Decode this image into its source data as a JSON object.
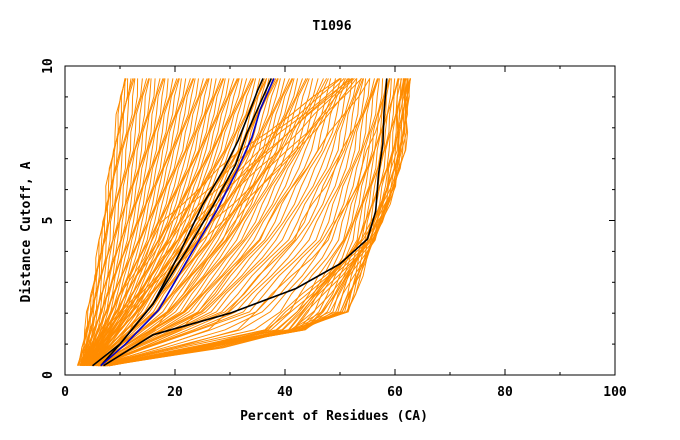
{
  "chart_data": {
    "type": "line",
    "title": "T1096",
    "xlabel": "Percent of Residues (CA)",
    "ylabel": "Distance Cutoff, A",
    "xlim": [
      0,
      100
    ],
    "ylim": [
      0,
      10
    ],
    "x_ticks": [
      "0",
      "20",
      "40",
      "60",
      "80",
      "100"
    ],
    "y_ticks": [
      "0",
      "5",
      "10"
    ],
    "grid": false,
    "colors": {
      "bundle": "#ff8c00",
      "highlight_black": "#000000",
      "highlight_blue": "#0000cc"
    },
    "bundle_note": "Several hundred orange curves fill the region between the left edge (x≈2 at y=0.3 to x≈11 at y=9.6) and the right edge (x≈8 at y=0.3 to x≈63 at y=9.6); representative curves given below.",
    "bundle_series": [
      {
        "x": [
          2.5,
          4.2,
          6.5,
          8.6,
          10.6
        ],
        "y": [
          0.3,
          2,
          4.5,
          7.2,
          9.6
        ]
      },
      {
        "x": [
          3.0,
          5.0,
          7.5,
          9.8,
          12.0
        ],
        "y": [
          0.3,
          2,
          4.5,
          7.2,
          9.6
        ]
      },
      {
        "x": [
          3.3,
          6.0,
          9.5,
          12.5,
          15.0
        ],
        "y": [
          0.3,
          2,
          4.5,
          7.2,
          9.6
        ]
      },
      {
        "x": [
          3.5,
          7.0,
          11.0,
          15.0,
          18.0
        ],
        "y": [
          0.3,
          2,
          4.5,
          7.2,
          9.6
        ]
      },
      {
        "x": [
          3.7,
          8.0,
          13.0,
          17.5,
          21.0
        ],
        "y": [
          0.3,
          2,
          4.5,
          7.2,
          9.6
        ]
      },
      {
        "x": [
          3.8,
          9.0,
          15.0,
          20.0,
          24.0
        ],
        "y": [
          0.3,
          2,
          4.5,
          7.2,
          9.6
        ]
      },
      {
        "x": [
          4.0,
          10.0,
          17.0,
          23.0,
          27.0
        ],
        "y": [
          0.3,
          2,
          4.5,
          7.2,
          9.6
        ]
      },
      {
        "x": [
          4.2,
          11.0,
          19.0,
          25.5,
          30.0
        ],
        "y": [
          0.3,
          2,
          4.5,
          7.2,
          9.6
        ]
      },
      {
        "x": [
          4.4,
          12.0,
          21.0,
          28.0,
          33.0
        ],
        "y": [
          0.3,
          2,
          4.5,
          7.2,
          9.6
        ]
      },
      {
        "x": [
          4.6,
          13.0,
          23.0,
          31.0,
          36.0
        ],
        "y": [
          0.3,
          2,
          4.5,
          7.2,
          9.6
        ]
      },
      {
        "x": [
          4.8,
          15.0,
          25.0,
          33.0,
          38.0
        ],
        "y": [
          0.3,
          2,
          4.5,
          7.2,
          9.6
        ]
      },
      {
        "x": [
          5.0,
          17.0,
          28.0,
          36.0,
          41.0
        ],
        "y": [
          0.3,
          2,
          4.5,
          7.2,
          9.6
        ]
      },
      {
        "x": [
          5.0,
          20.0,
          31.0,
          39.0,
          44.0
        ],
        "y": [
          0.3,
          2,
          4.5,
          7.2,
          9.6
        ]
      },
      {
        "x": [
          5.5,
          23.0,
          35.0,
          43.0,
          48.0
        ],
        "y": [
          0.3,
          2,
          4.5,
          7.2,
          9.6
        ]
      },
      {
        "x": [
          5.5,
          27.0,
          40.0,
          48.0,
          52.0
        ],
        "y": [
          0.3,
          2,
          4.5,
          7.2,
          9.6
        ]
      },
      {
        "x": [
          6.0,
          33.0,
          46.0,
          52.0,
          55.0
        ],
        "y": [
          0.3,
          2,
          4.5,
          7.2,
          9.6
        ]
      },
      {
        "x": [
          6.0,
          40.0,
          50.0,
          55.0,
          58.0
        ],
        "y": [
          0.3,
          1.5,
          4.2,
          7.0,
          9.6
        ]
      },
      {
        "x": [
          6.5,
          45.0,
          53.0,
          57.0,
          60.0
        ],
        "y": [
          0.3,
          1.5,
          4.2,
          7.0,
          9.6
        ]
      },
      {
        "x": [
          7.0,
          50.0,
          55.0,
          59.0,
          61.5
        ],
        "y": [
          0.3,
          1.7,
          4.5,
          7.0,
          9.6
        ]
      },
      {
        "x": [
          8.0,
          51.0,
          57.0,
          60.5,
          62.5
        ],
        "y": [
          0.3,
          1.8,
          4.7,
          7.0,
          9.6
        ]
      },
      {
        "x": [
          7.5,
          40.0,
          56.0,
          60.0,
          62.0,
          62.5
        ],
        "y": [
          0.3,
          1.2,
          4.4,
          6.0,
          7.5,
          9.6
        ]
      },
      {
        "x": [
          6.8,
          35.0,
          54.0,
          58.5,
          60.0,
          61.0
        ],
        "y": [
          0.3,
          1.3,
          4.3,
          6.0,
          7.5,
          9.6
        ]
      },
      {
        "x": [
          3.0,
          10.0,
          18.0,
          30.0,
          40.0,
          50.0
        ],
        "y": [
          0.3,
          2.5,
          5.0,
          7.0,
          8.3,
          9.6
        ]
      },
      {
        "x": [
          3.2,
          12.0,
          24.0,
          38.0,
          46.0,
          53.0
        ],
        "y": [
          0.3,
          2.0,
          4.2,
          6.5,
          8.0,
          9.6
        ]
      }
    ],
    "series": [
      {
        "color": "#000000",
        "x": [
          6.5,
          10.0,
          16.0,
          22.0,
          27.0,
          31.0,
          33.0,
          35.0,
          36.5,
          37.5
        ],
        "y": [
          0.3,
          1.0,
          2.3,
          4.0,
          5.5,
          6.8,
          7.8,
          8.6,
          9.2,
          9.6
        ]
      },
      {
        "color": "#0000cc",
        "x": [
          6.5,
          11.0,
          17.0,
          22.5,
          27.5,
          31.5,
          34.0,
          35.5,
          37.0,
          38.0
        ],
        "y": [
          0.3,
          1.0,
          2.1,
          3.8,
          5.3,
          6.7,
          7.7,
          8.6,
          9.2,
          9.6
        ]
      },
      {
        "color": "#000000",
        "x": [
          5.0,
          10.0,
          16.0,
          21.0,
          25.0,
          29.0,
          31.5,
          33.5,
          35.0,
          36.0
        ],
        "y": [
          0.3,
          1.0,
          2.3,
          4.0,
          5.5,
          6.7,
          7.6,
          8.5,
          9.2,
          9.6
        ]
      },
      {
        "color": "#000000",
        "x": [
          7.0,
          16.0,
          30.0,
          42.0,
          50.0,
          55.0,
          56.5,
          57.0,
          57.8,
          58.0,
          58.5
        ],
        "y": [
          0.3,
          1.3,
          2.0,
          2.8,
          3.6,
          4.4,
          5.3,
          6.5,
          7.5,
          8.5,
          9.6
        ]
      }
    ]
  }
}
